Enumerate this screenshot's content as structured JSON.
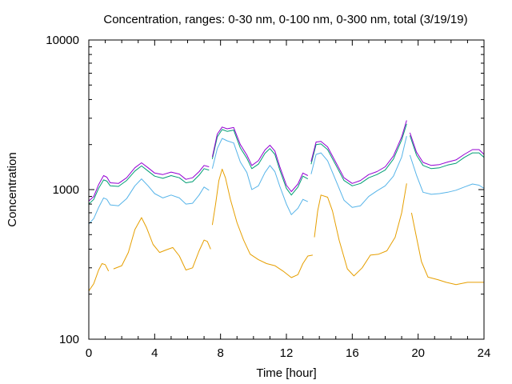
{
  "chart_data": {
    "type": "line",
    "title": "Concentration, ranges: 0-30 nm, 0-100 nm, 0-300 nm, total (3/19/19)",
    "xlabel": "Time [hour]",
    "ylabel": "Concentration",
    "xlim": [
      0,
      24
    ],
    "ylim": [
      100,
      10000
    ],
    "y_scale": "log",
    "x_ticks": [
      0,
      4,
      8,
      12,
      16,
      20,
      24
    ],
    "x_tick_labels": [
      "0",
      "4",
      "8",
      "12",
      "16",
      "20",
      "24"
    ],
    "y_ticks": [
      100,
      1000,
      10000
    ],
    "y_tick_labels": [
      "100",
      "1000",
      "10000"
    ],
    "grid": false,
    "legend": "none",
    "series": [
      {
        "color": "#e69f00",
        "segments": [
          [
            [
              0,
              210
            ],
            [
              0.3,
              235
            ],
            [
              0.6,
              290
            ],
            [
              0.8,
              320
            ],
            [
              1.0,
              315
            ],
            [
              1.2,
              285
            ]
          ],
          [
            [
              1.5,
              295
            ],
            [
              2.0,
              310
            ],
            [
              2.4,
              380
            ],
            [
              2.8,
              540
            ],
            [
              3.2,
              650
            ],
            [
              3.5,
              560
            ],
            [
              3.9,
              430
            ],
            [
              4.3,
              380
            ],
            [
              4.7,
              395
            ],
            [
              5.1,
              410
            ],
            [
              5.5,
              360
            ],
            [
              5.9,
              290
            ],
            [
              6.3,
              300
            ],
            [
              6.7,
              390
            ],
            [
              7.0,
              460
            ],
            [
              7.2,
              450
            ],
            [
              7.4,
              400
            ]
          ],
          [
            [
              7.5,
              580
            ],
            [
              7.7,
              800
            ],
            [
              7.9,
              1150
            ],
            [
              8.1,
              1370
            ],
            [
              8.3,
              1200
            ],
            [
              8.6,
              860
            ],
            [
              9.0,
              600
            ],
            [
              9.4,
              460
            ],
            [
              9.8,
              370
            ],
            [
              10.3,
              340
            ],
            [
              10.8,
              320
            ],
            [
              11.3,
              310
            ],
            [
              11.8,
              285
            ],
            [
              12.3,
              258
            ],
            [
              12.7,
              270
            ],
            [
              13.0,
              320
            ],
            [
              13.3,
              360
            ],
            [
              13.6,
              365
            ]
          ],
          [
            [
              13.7,
              480
            ],
            [
              13.9,
              720
            ],
            [
              14.1,
              920
            ],
            [
              14.5,
              890
            ],
            [
              14.8,
              720
            ],
            [
              15.2,
              460
            ],
            [
              15.7,
              295
            ],
            [
              16.1,
              265
            ],
            [
              16.6,
              300
            ],
            [
              17.1,
              365
            ],
            [
              17.6,
              370
            ],
            [
              18.1,
              390
            ],
            [
              18.6,
              480
            ],
            [
              19.0,
              700
            ],
            [
              19.3,
              1100
            ]
          ],
          [
            [
              19.6,
              700
            ],
            [
              19.9,
              480
            ],
            [
              20.2,
              330
            ],
            [
              20.6,
              260
            ],
            [
              21.2,
              250
            ],
            [
              21.7,
              240
            ],
            [
              22.3,
              232
            ],
            [
              23.0,
              240
            ],
            [
              24.0,
              240
            ]
          ]
        ]
      },
      {
        "color": "#56b4e9",
        "segments": [
          [
            [
              0,
              590
            ],
            [
              0.3,
              640
            ],
            [
              0.6,
              760
            ],
            [
              0.9,
              880
            ],
            [
              1.1,
              860
            ],
            [
              1.3,
              790
            ],
            [
              1.8,
              780
            ],
            [
              2.3,
              870
            ],
            [
              2.8,
              1060
            ],
            [
              3.2,
              1180
            ],
            [
              3.6,
              1060
            ],
            [
              4.0,
              940
            ],
            [
              4.5,
              880
            ],
            [
              5.0,
              920
            ],
            [
              5.5,
              880
            ],
            [
              5.9,
              800
            ],
            [
              6.3,
              810
            ],
            [
              6.7,
              920
            ],
            [
              7.0,
              1040
            ],
            [
              7.3,
              990
            ]
          ],
          [
            [
              7.5,
              1380
            ],
            [
              7.8,
              1880
            ],
            [
              8.1,
              2200
            ],
            [
              8.4,
              2120
            ],
            [
              8.8,
              2050
            ],
            [
              9.2,
              1530
            ],
            [
              9.6,
              1300
            ],
            [
              9.9,
              1000
            ],
            [
              10.3,
              1060
            ],
            [
              10.7,
              1300
            ],
            [
              11.0,
              1450
            ],
            [
              11.3,
              1320
            ],
            [
              11.6,
              1050
            ],
            [
              12.0,
              800
            ],
            [
              12.3,
              680
            ],
            [
              12.7,
              750
            ],
            [
              13.0,
              860
            ],
            [
              13.3,
              830
            ]
          ],
          [
            [
              13.5,
              1270
            ],
            [
              13.8,
              1720
            ],
            [
              14.1,
              1760
            ],
            [
              14.5,
              1560
            ],
            [
              15.0,
              1150
            ],
            [
              15.5,
              850
            ],
            [
              16.0,
              760
            ],
            [
              16.5,
              780
            ],
            [
              17.0,
              900
            ],
            [
              17.5,
              980
            ],
            [
              18.0,
              1060
            ],
            [
              18.5,
              1230
            ],
            [
              19.0,
              1650
            ],
            [
              19.3,
              2280
            ]
          ],
          [
            [
              19.5,
              1700
            ],
            [
              19.9,
              1250
            ],
            [
              20.3,
              960
            ],
            [
              20.8,
              930
            ],
            [
              21.3,
              940
            ],
            [
              21.8,
              960
            ],
            [
              22.3,
              990
            ],
            [
              22.8,
              1040
            ],
            [
              23.3,
              1090
            ],
            [
              23.7,
              1070
            ],
            [
              24.0,
              1020
            ]
          ]
        ]
      },
      {
        "color": "#009e73",
        "segments": [
          [
            [
              0,
              800
            ],
            [
              0.3,
              860
            ],
            [
              0.6,
              1020
            ],
            [
              0.9,
              1160
            ],
            [
              1.1,
              1140
            ],
            [
              1.3,
              1060
            ],
            [
              1.8,
              1050
            ],
            [
              2.3,
              1150
            ],
            [
              2.8,
              1330
            ],
            [
              3.2,
              1440
            ],
            [
              3.6,
              1330
            ],
            [
              4.0,
              1230
            ],
            [
              4.5,
              1190
            ],
            [
              5.0,
              1240
            ],
            [
              5.5,
              1200
            ],
            [
              5.9,
              1110
            ],
            [
              6.3,
              1130
            ],
            [
              6.7,
              1250
            ],
            [
              7.0,
              1380
            ],
            [
              7.3,
              1350
            ]
          ],
          [
            [
              7.5,
              1600
            ],
            [
              7.8,
              2250
            ],
            [
              8.1,
              2520
            ],
            [
              8.4,
              2450
            ],
            [
              8.8,
              2500
            ],
            [
              9.2,
              1900
            ],
            [
              9.6,
              1620
            ],
            [
              9.9,
              1380
            ],
            [
              10.3,
              1480
            ],
            [
              10.7,
              1750
            ],
            [
              11.0,
              1880
            ],
            [
              11.3,
              1720
            ],
            [
              11.6,
              1350
            ],
            [
              12.0,
              1020
            ],
            [
              12.3,
              920
            ],
            [
              12.7,
              1040
            ],
            [
              13.0,
              1230
            ],
            [
              13.3,
              1180
            ]
          ],
          [
            [
              13.5,
              1480
            ],
            [
              13.8,
              2000
            ],
            [
              14.1,
              2020
            ],
            [
              14.5,
              1850
            ],
            [
              15.0,
              1460
            ],
            [
              15.5,
              1150
            ],
            [
              16.0,
              1060
            ],
            [
              16.5,
              1100
            ],
            [
              17.0,
              1200
            ],
            [
              17.5,
              1260
            ],
            [
              18.0,
              1350
            ],
            [
              18.5,
              1600
            ],
            [
              19.0,
              2150
            ],
            [
              19.3,
              2750
            ]
          ],
          [
            [
              19.5,
              2300
            ],
            [
              19.9,
              1700
            ],
            [
              20.3,
              1450
            ],
            [
              20.8,
              1380
            ],
            [
              21.3,
              1400
            ],
            [
              21.8,
              1460
            ],
            [
              22.3,
              1500
            ],
            [
              22.8,
              1640
            ],
            [
              23.3,
              1760
            ],
            [
              23.7,
              1760
            ],
            [
              24.0,
              1640
            ]
          ]
        ]
      },
      {
        "color": "#9400d3",
        "segments": [
          [
            [
              0,
              840
            ],
            [
              0.3,
              900
            ],
            [
              0.6,
              1080
            ],
            [
              0.9,
              1240
            ],
            [
              1.1,
              1210
            ],
            [
              1.3,
              1110
            ],
            [
              1.8,
              1100
            ],
            [
              2.3,
              1200
            ],
            [
              2.8,
              1400
            ],
            [
              3.2,
              1510
            ],
            [
              3.6,
              1400
            ],
            [
              4.0,
              1290
            ],
            [
              4.5,
              1260
            ],
            [
              5.0,
              1310
            ],
            [
              5.5,
              1270
            ],
            [
              5.9,
              1170
            ],
            [
              6.3,
              1200
            ],
            [
              6.7,
              1320
            ],
            [
              7.0,
              1450
            ],
            [
              7.3,
              1420
            ]
          ],
          [
            [
              7.5,
              1650
            ],
            [
              7.8,
              2350
            ],
            [
              8.1,
              2620
            ],
            [
              8.4,
              2550
            ],
            [
              8.8,
              2600
            ],
            [
              9.2,
              2000
            ],
            [
              9.6,
              1700
            ],
            [
              9.9,
              1450
            ],
            [
              10.3,
              1560
            ],
            [
              10.7,
              1840
            ],
            [
              11.0,
              1980
            ],
            [
              11.3,
              1810
            ],
            [
              11.6,
              1420
            ],
            [
              12.0,
              1070
            ],
            [
              12.3,
              970
            ],
            [
              12.7,
              1090
            ],
            [
              13.0,
              1290
            ],
            [
              13.3,
              1240
            ]
          ],
          [
            [
              13.5,
              1540
            ],
            [
              13.8,
              2080
            ],
            [
              14.1,
              2100
            ],
            [
              14.5,
              1930
            ],
            [
              15.0,
              1520
            ],
            [
              15.5,
              1200
            ],
            [
              16.0,
              1100
            ],
            [
              16.5,
              1150
            ],
            [
              17.0,
              1260
            ],
            [
              17.5,
              1320
            ],
            [
              18.0,
              1420
            ],
            [
              18.5,
              1680
            ],
            [
              19.0,
              2250
            ],
            [
              19.3,
              2900
            ]
          ],
          [
            [
              19.5,
              2400
            ],
            [
              19.9,
              1780
            ],
            [
              20.3,
              1520
            ],
            [
              20.8,
              1450
            ],
            [
              21.3,
              1470
            ],
            [
              21.8,
              1530
            ],
            [
              22.3,
              1580
            ],
            [
              22.8,
              1720
            ],
            [
              23.3,
              1850
            ],
            [
              23.7,
              1850
            ],
            [
              24.0,
              1720
            ]
          ]
        ]
      }
    ]
  }
}
